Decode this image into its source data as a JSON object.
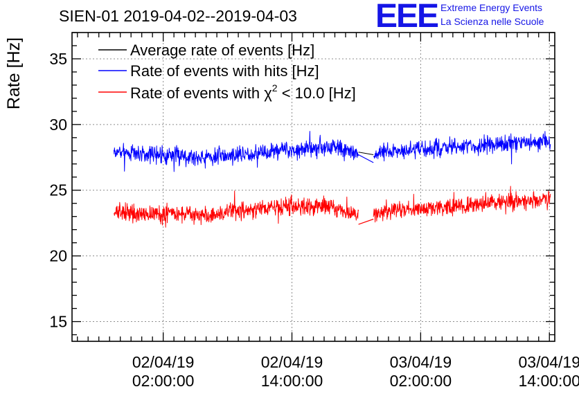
{
  "chart_data": {
    "type": "line",
    "title": "SIEN-01 2019-04-02--2019-04-03",
    "ylabel": "Rate [Hz]",
    "xlabel": "",
    "ylim": [
      13.5,
      37
    ],
    "yticks": [
      15,
      20,
      25,
      30,
      35
    ],
    "xlim_hours": [
      -6.5,
      38.5
    ],
    "xticks": [
      {
        "hour": 2,
        "date": "02/04/19",
        "time": "02:00:00"
      },
      {
        "hour": 14,
        "date": "02/04/19",
        "time": "14:00:00"
      },
      {
        "hour": 26,
        "date": "03/04/19",
        "time": "02:00:00"
      },
      {
        "hour": 38,
        "date": "03/04/19",
        "time": "14:00:00"
      }
    ],
    "x_minor_step_hours": 1,
    "y_minor_step": 1,
    "grid": true,
    "legend_position": "top-left",
    "legend": {
      "avg": {
        "name": "Average rate of events [Hz]",
        "color": "#000000"
      },
      "hits": {
        "name": "Rate of events with hits [Hz]",
        "color": "#0000ff"
      },
      "chi": {
        "prefix": "Rate of events with ",
        "symbol": "χ",
        "sup": "2",
        "suffix": " < 10.0 [Hz]",
        "color": "#ff0000"
      }
    },
    "series": [
      {
        "key": "hits",
        "name": "Rate of events with hits [Hz]",
        "color": "#0000ff",
        "noise": 0.75,
        "seed": 7,
        "segments": [
          {
            "x": [
              -2.6,
              2,
              6,
              10,
              14,
              18,
              20.2
            ],
            "y": [
              27.9,
              27.7,
              27.5,
              27.8,
              28.1,
              28.3,
              27.7
            ]
          },
          {
            "x": [
              21.6,
              23,
              26,
              30,
              34,
              38.1
            ],
            "y": [
              27.7,
              28.0,
              28.1,
              28.3,
              28.5,
              28.7
            ]
          }
        ],
        "bridge": {
          "x": [
            20.2,
            21.6
          ],
          "y": [
            27.7,
            27.1
          ]
        }
      },
      {
        "key": "chi",
        "name": "Rate of events with χ² < 10.0 [Hz]",
        "color": "#ff0000",
        "noise": 0.75,
        "seed": 13,
        "segments": [
          {
            "x": [
              -2.6,
              2,
              6,
              10,
              14,
              18,
              20.2
            ],
            "y": [
              23.3,
              23.2,
              23.1,
              23.5,
              23.8,
              23.7,
              23.1
            ]
          },
          {
            "x": [
              21.6,
              23,
              26,
              30,
              34,
              38.1
            ],
            "y": [
              23.1,
              23.5,
              23.6,
              23.8,
              24.1,
              24.3
            ]
          }
        ],
        "bridge": {
          "x": [
            20.2,
            21.6
          ],
          "y": [
            22.4,
            22.8
          ]
        }
      },
      {
        "key": "avg",
        "name": "Average rate of events [Hz]",
        "color": "#000000",
        "noise": 0,
        "seed": 1,
        "segments": [
          {
            "x": [
              20.2,
              21.6
            ],
            "y": [
              27.9,
              27.7
            ]
          }
        ]
      }
    ]
  },
  "logo": {
    "letters": "EEE",
    "line1": "Extreme Energy Events",
    "line2": "La Scienza nelle Scuole"
  }
}
